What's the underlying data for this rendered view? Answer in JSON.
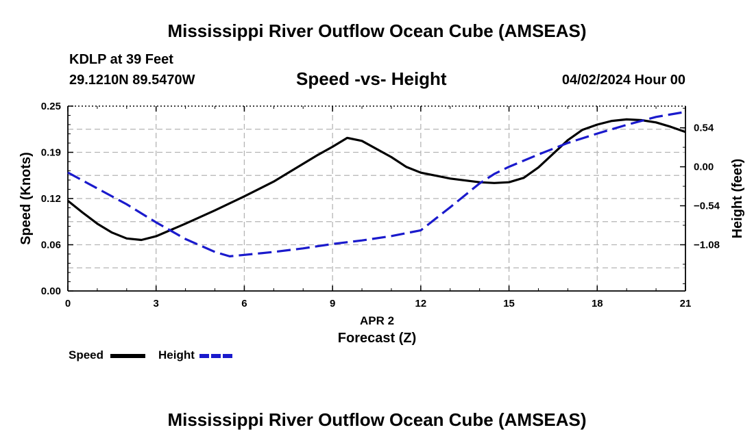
{
  "header": {
    "title": "Mississippi River Outflow Ocean Cube (AMSEAS)",
    "station": "KDLP at 39 Feet",
    "coords": "29.1210N  89.5470W",
    "subtitle": "Speed -vs- Height",
    "datetime": "04/02/2024 Hour 00"
  },
  "footer": {
    "title": "Mississippi River Outflow Ocean Cube (AMSEAS)"
  },
  "legend": {
    "speed_label": "Speed",
    "height_label": "Height"
  },
  "colors": {
    "speed": "#000000",
    "height": "#1a1acc",
    "grid": "#b4b4b4"
  },
  "chart_data": {
    "type": "line",
    "title": "Speed -vs- Height",
    "xlabel": "Forecast (Z)",
    "xlabel_date": "APR 2",
    "ylabel": "Speed (Knots)",
    "y2label": "Height (feet)",
    "xlim": [
      0,
      21
    ],
    "ylim": [
      0,
      0.25
    ],
    "y2lim": [
      -1.72,
      0.84
    ],
    "x_ticks": [
      "0",
      "3",
      "6",
      "9",
      "12",
      "15",
      "18",
      "21"
    ],
    "y_ticks": [
      "0.00",
      "0.06",
      "0.12",
      "0.19",
      "0.25"
    ],
    "y_tick_values": [
      0,
      0.0625,
      0.125,
      0.1875,
      0.25
    ],
    "y2_ticks": [
      "0.54",
      "0.00",
      "−0.54",
      "−1.08"
    ],
    "y2_tick_values": [
      0.54,
      0.0,
      -0.54,
      -1.08
    ],
    "series": [
      {
        "name": "Speed",
        "axis": "left",
        "x": [
          0,
          0.5,
          1,
          1.5,
          2,
          2.5,
          3,
          4,
          5,
          6,
          7,
          8,
          8.5,
          9,
          9.5,
          10,
          11,
          11.5,
          12,
          13,
          14,
          14.5,
          15,
          15.5,
          16,
          17,
          17.5,
          18,
          18.5,
          19,
          19.5,
          20,
          20.5,
          21
        ],
        "values": [
          0.122,
          0.106,
          0.091,
          0.079,
          0.071,
          0.069,
          0.074,
          0.091,
          0.109,
          0.128,
          0.148,
          0.172,
          0.184,
          0.195,
          0.207,
          0.203,
          0.181,
          0.168,
          0.16,
          0.152,
          0.147,
          0.146,
          0.147,
          0.153,
          0.167,
          0.204,
          0.218,
          0.225,
          0.23,
          0.232,
          0.231,
          0.228,
          0.222,
          0.215
        ]
      },
      {
        "name": "Height",
        "axis": "right",
        "x": [
          0,
          1,
          2,
          3,
          4,
          5,
          5.5,
          6,
          7,
          8,
          9,
          10,
          11,
          12,
          13,
          14,
          14.5,
          15,
          16,
          17,
          18,
          19,
          20,
          21
        ],
        "values": [
          -0.08,
          -0.3,
          -0.52,
          -0.77,
          -1.0,
          -1.18,
          -1.24,
          -1.22,
          -1.18,
          -1.13,
          -1.07,
          -1.02,
          -0.96,
          -0.88,
          -0.56,
          -0.23,
          -0.1,
          0.0,
          0.17,
          0.33,
          0.46,
          0.58,
          0.69,
          0.76
        ]
      }
    ]
  }
}
